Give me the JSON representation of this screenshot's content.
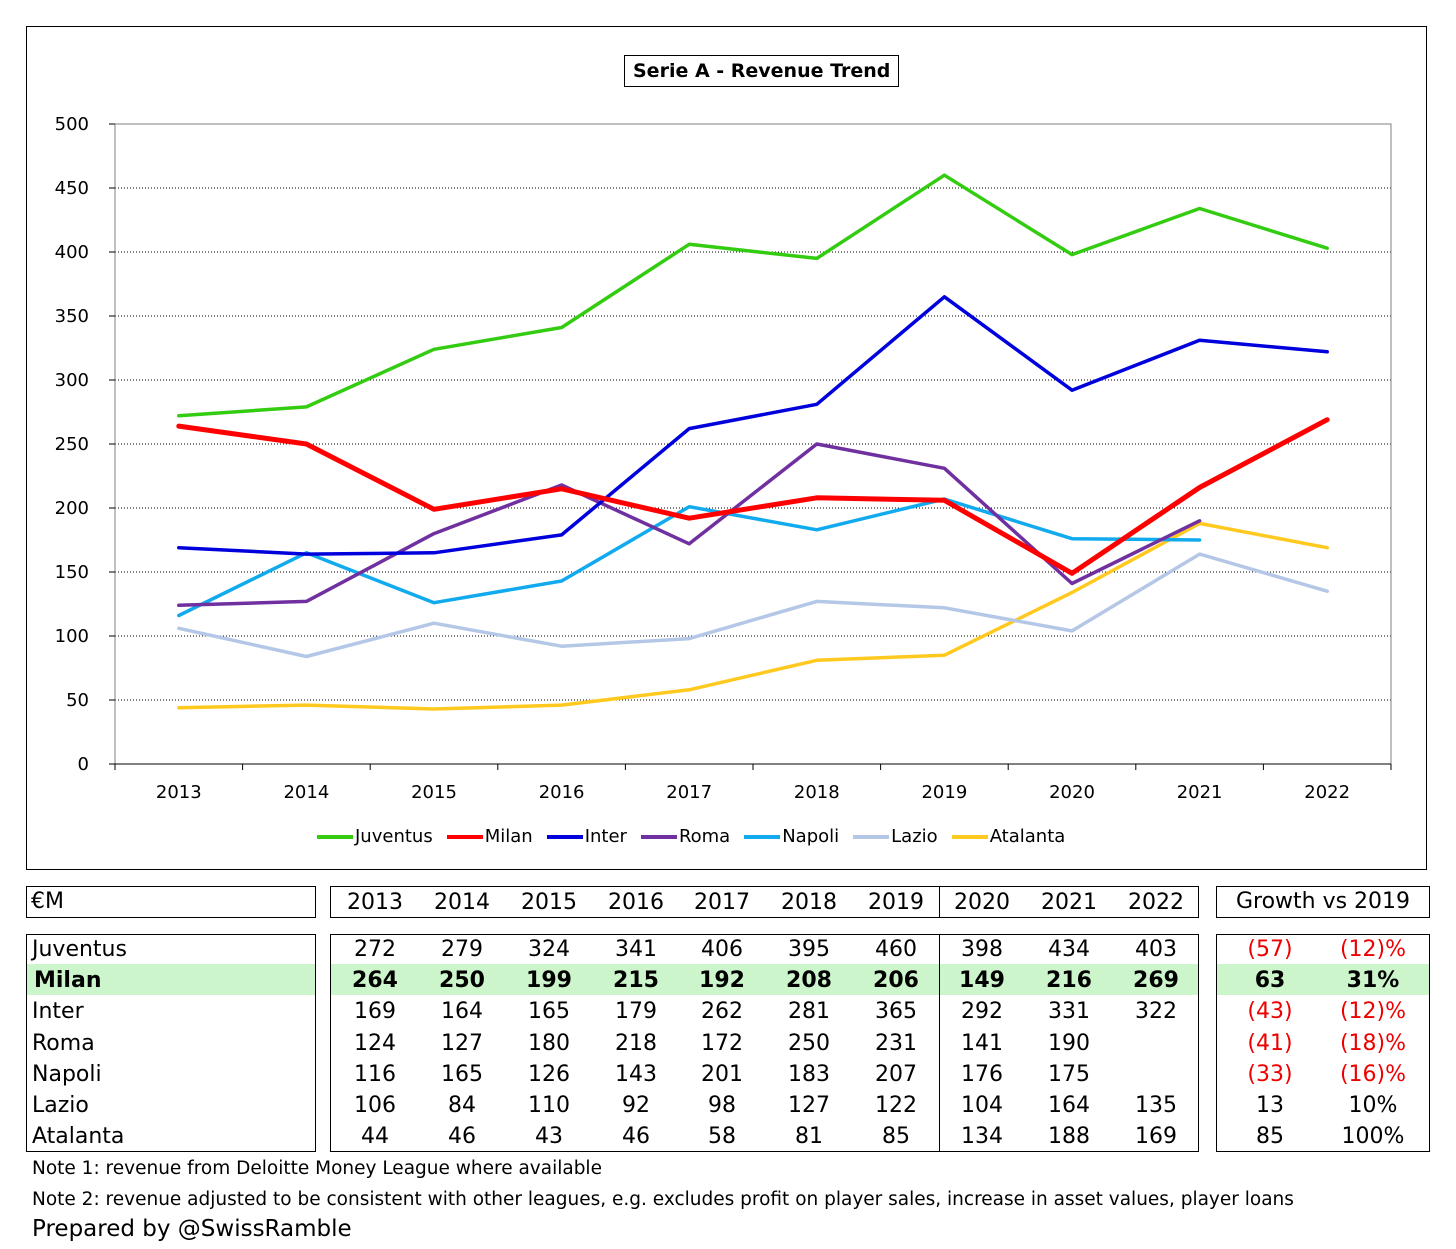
{
  "chart_data": {
    "type": "line",
    "title": "Serie A - Revenue Trend",
    "x": [
      "2013",
      "2014",
      "2015",
      "2016",
      "2017",
      "2018",
      "2019",
      "2020",
      "2021",
      "2022"
    ],
    "ylim": [
      0,
      500
    ],
    "yticks": [
      0,
      50,
      100,
      150,
      200,
      250,
      300,
      350,
      400,
      450,
      500
    ],
    "grid": "horizontal dotted",
    "legend_position": "bottom",
    "series": [
      {
        "name": "Juventus",
        "color": "#33cc11",
        "values": [
          272,
          279,
          324,
          341,
          406,
          395,
          460,
          398,
          434,
          403
        ]
      },
      {
        "name": "Milan",
        "color": "#ff0000",
        "values": [
          264,
          250,
          199,
          215,
          192,
          208,
          206,
          149,
          216,
          269
        ]
      },
      {
        "name": "Inter",
        "color": "#0000dd",
        "values": [
          169,
          164,
          165,
          179,
          262,
          281,
          365,
          292,
          331,
          322
        ]
      },
      {
        "name": "Roma",
        "color": "#7030a0",
        "values": [
          124,
          127,
          180,
          218,
          172,
          250,
          231,
          141,
          190,
          null
        ]
      },
      {
        "name": "Napoli",
        "color": "#11aaee",
        "values": [
          116,
          165,
          126,
          143,
          201,
          183,
          207,
          176,
          175,
          null
        ]
      },
      {
        "name": "Lazio",
        "color": "#b4c7e7",
        "values": [
          106,
          84,
          110,
          92,
          98,
          127,
          122,
          104,
          164,
          135
        ]
      },
      {
        "name": "Atalanta",
        "color": "#ffc91f",
        "values": [
          44,
          46,
          43,
          46,
          58,
          81,
          85,
          134,
          188,
          169
        ]
      }
    ]
  },
  "table": {
    "unit_label": "€M",
    "years": [
      "2013",
      "2014",
      "2015",
      "2016",
      "2017",
      "2018",
      "2019",
      "2020",
      "2021",
      "2022"
    ],
    "growth_header": "Growth vs 2019",
    "highlight_color": "#ccf5cc",
    "negative_color": "#ee0000",
    "rows": [
      {
        "club": "Juventus",
        "highlight": false,
        "values": [
          "272",
          "279",
          "324",
          "341",
          "406",
          "395",
          "460",
          "398",
          "434",
          "403"
        ],
        "growth_abs": "(57)",
        "growth_pct": "(12)%",
        "negative": true
      },
      {
        "club": "Milan",
        "highlight": true,
        "values": [
          "264",
          "250",
          "199",
          "215",
          "192",
          "208",
          "206",
          "149",
          "216",
          "269"
        ],
        "growth_abs": "63",
        "growth_pct": "31%",
        "negative": false
      },
      {
        "club": "Inter",
        "highlight": false,
        "values": [
          "169",
          "164",
          "165",
          "179",
          "262",
          "281",
          "365",
          "292",
          "331",
          "322"
        ],
        "growth_abs": "(43)",
        "growth_pct": "(12)%",
        "negative": true
      },
      {
        "club": "Roma",
        "highlight": false,
        "values": [
          "124",
          "127",
          "180",
          "218",
          "172",
          "250",
          "231",
          "141",
          "190",
          ""
        ],
        "growth_abs": "(41)",
        "growth_pct": "(18)%",
        "negative": true
      },
      {
        "club": "Napoli",
        "highlight": false,
        "values": [
          "116",
          "165",
          "126",
          "143",
          "201",
          "183",
          "207",
          "176",
          "175",
          ""
        ],
        "growth_abs": "(33)",
        "growth_pct": "(16)%",
        "negative": true
      },
      {
        "club": "Lazio",
        "highlight": false,
        "values": [
          "106",
          "84",
          "110",
          "92",
          "98",
          "127",
          "122",
          "104",
          "164",
          "135"
        ],
        "growth_abs": "13",
        "growth_pct": "10%",
        "negative": false
      },
      {
        "club": "Atalanta",
        "highlight": false,
        "values": [
          "44",
          "46",
          "43",
          "46",
          "58",
          "81",
          "85",
          "134",
          "188",
          "169"
        ],
        "growth_abs": "85",
        "growth_pct": "100%",
        "negative": false
      }
    ]
  },
  "notes": {
    "note1": "Note 1: revenue from Deloitte Money League where available",
    "note2": "Note 2: revenue adjusted to be consistent with other leagues, e.g. excludes profit on player sales, increase in asset values, player loans"
  },
  "credit": "Prepared by @SwissRamble"
}
